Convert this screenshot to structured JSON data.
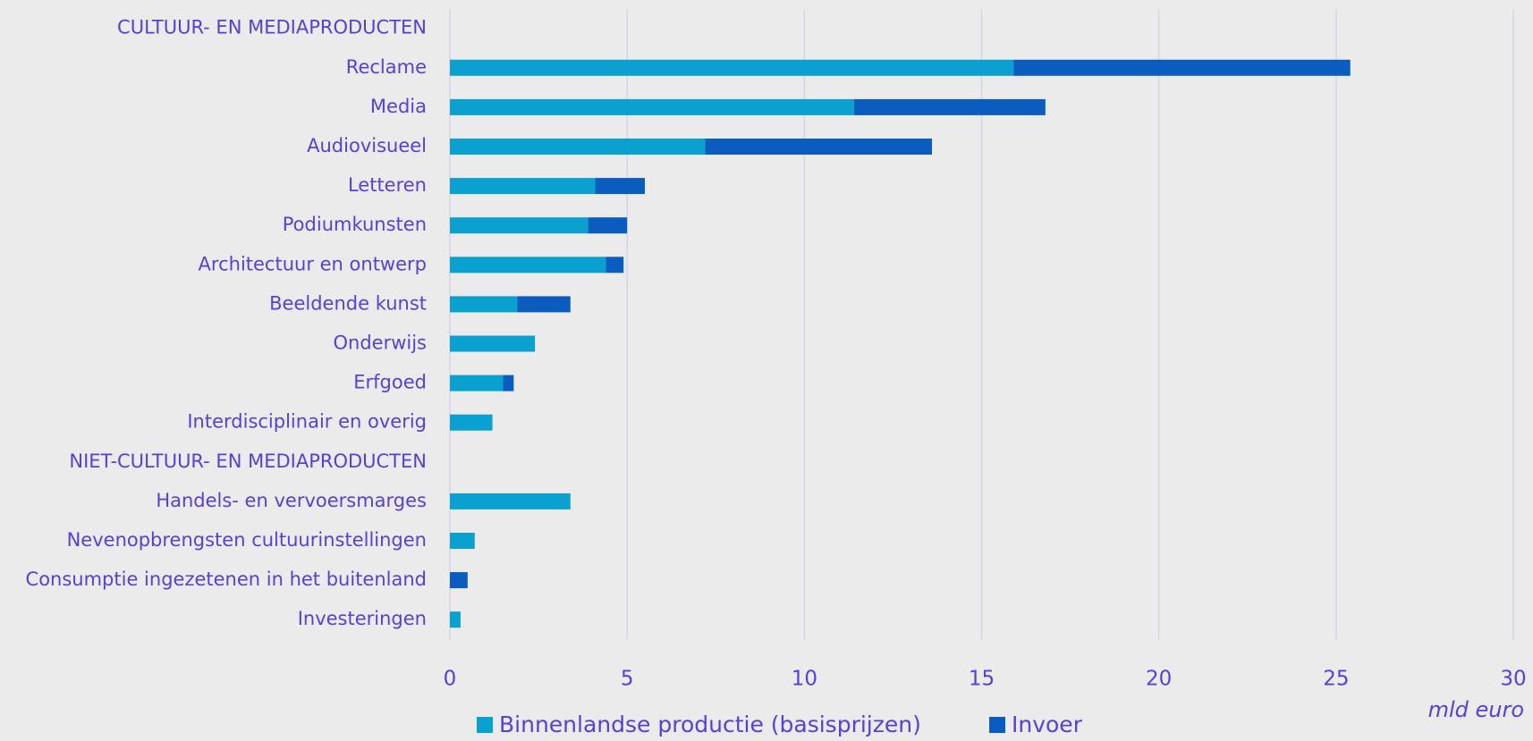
{
  "chart_data": {
    "type": "stacked-barh",
    "categories": [
      "CULTUUR- EN MEDIAPRODUCTEN",
      "Reclame",
      "Media",
      "Audiovisueel",
      "Letteren",
      "Podiumkunsten",
      "Architectuur en ontwerp",
      "Beeldende kunst",
      "Onderwijs",
      "Erfgoed",
      "Interdisciplinair en overig",
      "NIET-CULTUUR- EN MEDIAPRODUCTEN",
      "Handels- en vervoersmarges",
      "Nevenopbrengsten cultuurinstellingen",
      "Consumptie ingezetenen in het buitenland",
      "Investeringen"
    ],
    "series": [
      {
        "name": "Binnenlandse productie (basisprijzen)",
        "color": "#0aa0cf",
        "values": [
          null,
          15.9,
          11.4,
          7.2,
          4.1,
          3.9,
          4.4,
          1.9,
          2.4,
          1.5,
          1.2,
          null,
          3.4,
          0.7,
          0,
          0.3
        ]
      },
      {
        "name": "Invoer",
        "color": "#0a5cbf",
        "values": [
          null,
          9.5,
          5.4,
          6.4,
          1.4,
          1.1,
          0.5,
          1.5,
          0,
          0.3,
          0,
          null,
          0,
          0,
          0.5,
          0
        ]
      }
    ],
    "xlabel": "mld euro",
    "xlim": [
      0,
      30
    ],
    "xticks": [
      0,
      5,
      10,
      15,
      20,
      25,
      30
    ],
    "grid": true
  }
}
